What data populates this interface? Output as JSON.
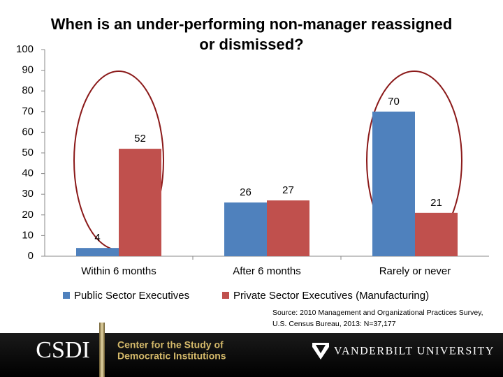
{
  "chart_data": {
    "type": "bar",
    "title": "When is an under-performing non-manager reassigned or dismissed?",
    "categories": [
      "Within 6 months",
      "After 6 months",
      "Rarely or never"
    ],
    "series": [
      {
        "name": "Public Sector Executives",
        "color": "#4f81bd",
        "values": [
          4,
          26,
          70
        ]
      },
      {
        "name": "Private Sector Executives (Manufacturing)",
        "color": "#c0504d",
        "values": [
          52,
          27,
          21
        ]
      }
    ],
    "ylim": [
      0,
      100
    ],
    "yticks": [
      0,
      10,
      20,
      30,
      40,
      50,
      60,
      70,
      80,
      90,
      100
    ],
    "grid": false,
    "legend": "bottom",
    "source": [
      "Source: 2010 Management and Organizational Practices Survey,",
      "U.S. Census Bureau, 2013: N=37,177"
    ]
  },
  "footer": {
    "logo": "CSDI",
    "center_lines": [
      "Center for the Study of",
      "Democratic Institutions"
    ],
    "university": "VANDERBILT UNIVERSITY"
  }
}
